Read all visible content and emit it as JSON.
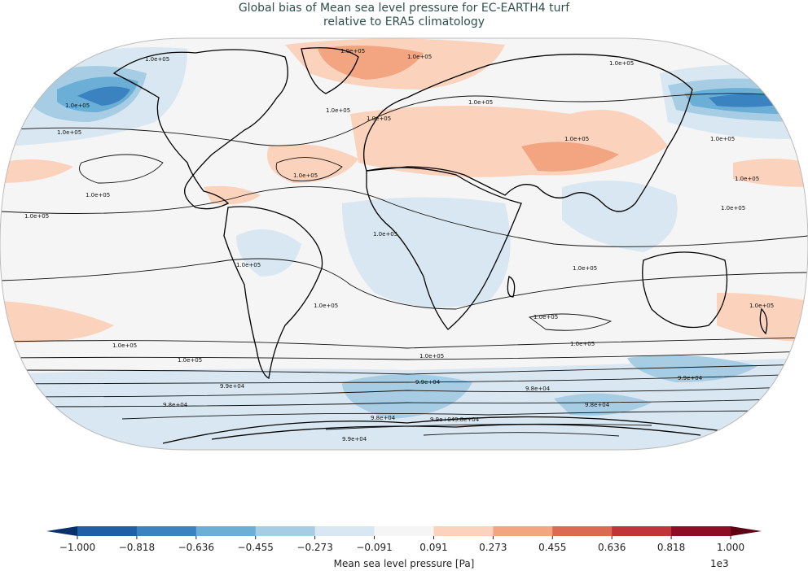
{
  "title": {
    "line1": "Global bias of Mean sea level pressure for EC-EARTH4 turf",
    "line2": "relative to ERA5 climatology"
  },
  "colorbar": {
    "label": "Mean sea level pressure [Pa]",
    "multiplier": "1e3",
    "ticks": [
      "−1.000",
      "−0.818",
      "−0.636",
      "−0.455",
      "−0.273",
      "−0.091",
      "0.091",
      "0.273",
      "0.455",
      "0.636",
      "0.818",
      "1.000"
    ],
    "colors": [
      "#08306b",
      "#1f5fa6",
      "#3b82c1",
      "#6baed6",
      "#a6cde3",
      "#d8e7f1",
      "#f5f5f5",
      "#fbd3bd",
      "#f3a582",
      "#dc6a52",
      "#c1353a",
      "#8e0d24",
      "#5e0014"
    ]
  },
  "contour_labels": [
    "1.0e+05",
    "1.0e+05",
    "1.0e+05",
    "1.0e+05",
    "1.0e+05",
    "1.0e+05",
    "1.0e+05",
    "1.0e+05",
    "1.0e+05",
    "1.0e+05",
    "1.0e+05",
    "1.0e+05",
    "1.0e+05",
    "1.0e+05",
    "1.0e+05",
    "1.0e+05",
    "1.0e+05",
    "1.0e+05",
    "1.0e+05",
    "1.0e+05",
    "1.0e+05",
    "1.0e+05",
    "1.0e+05",
    "1.0e+05",
    "1.0e+05",
    "1.0e+05",
    "9.9e+04",
    "9.9e+04",
    "9.9e+04",
    "9.9e+04",
    "9.9e+04",
    "9.8e+04",
    "9.8e+04",
    "9.8e+04",
    "9.8e+04",
    "9.8e+04"
  ]
}
